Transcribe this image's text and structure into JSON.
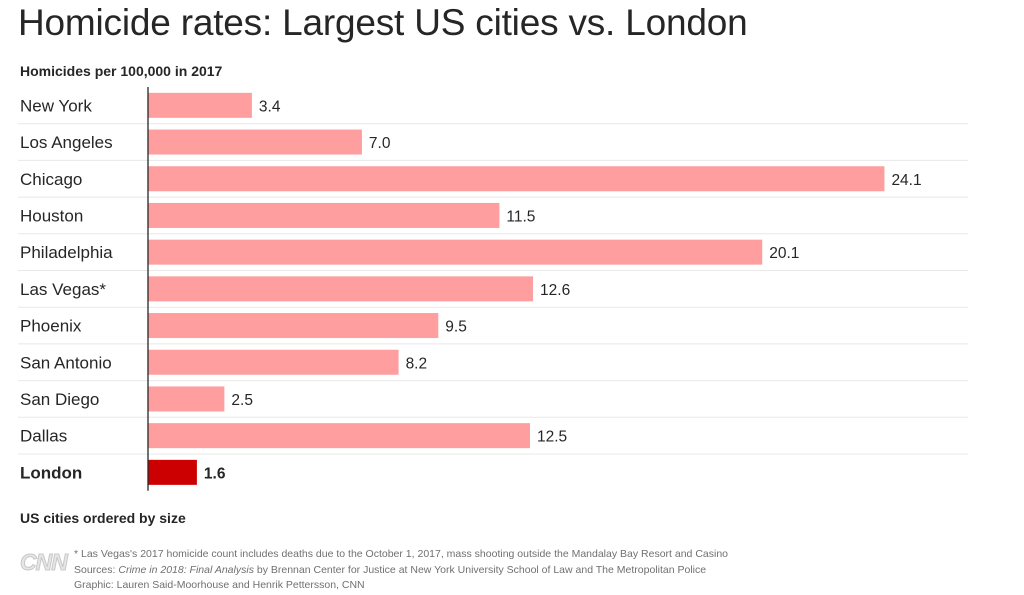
{
  "title": "Homicide rates: Largest US cities vs. London",
  "subtitle": "Homicides per 100,000 in 2017",
  "order_note": "US cities ordered by size",
  "logo_text": "CNN",
  "footnotes": {
    "note": "* Las Vegas's 2017 homicide count includes deaths due to the October 1, 2017, mass shooting outside the Mandalay Bay Resort and Casino",
    "sources_prefix": "Sources: ",
    "sources_title": "Crime in 2018: Final Analysis",
    "sources_rest": " by Brennan Center for Justice at New York University School of Law and The Metropolitan Police",
    "graphic": "Graphic: Lauren Said-Moorhouse and Henrik Pettersson, CNN"
  },
  "colors": {
    "us_bar": "#ff9e9e",
    "london_bar": "#cc0000",
    "gridline": "#e8e8e8",
    "axis": "#262626"
  },
  "chart_data": {
    "type": "bar",
    "orientation": "horizontal",
    "categories": [
      "New York",
      "Los Angeles",
      "Chicago",
      "Houston",
      "Philadelphia",
      "Las Vegas*",
      "Phoenix",
      "San Antonio",
      "San Diego",
      "Dallas",
      "London"
    ],
    "values": [
      3.4,
      7.0,
      24.1,
      11.5,
      20.1,
      12.6,
      9.5,
      8.2,
      2.5,
      12.5,
      1.6
    ],
    "value_labels": [
      "3.4",
      "7.0",
      "24.1",
      "11.5",
      "20.1",
      "12.6",
      "9.5",
      "8.2",
      "2.5",
      "12.5",
      "1.6"
    ],
    "highlight": "London",
    "title": "Homicide rates: Largest US cities vs. London",
    "xlabel": "",
    "ylabel": "",
    "xlim": [
      0,
      25.1
    ],
    "grid": true,
    "legend": "none"
  }
}
